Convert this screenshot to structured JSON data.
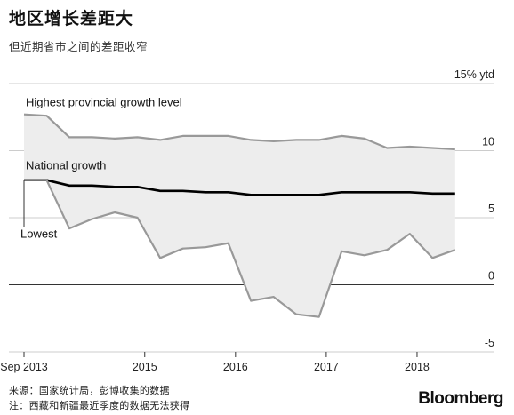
{
  "header": {
    "title": "地区增长差距大",
    "subtitle": "但近期省市之间的差距收窄"
  },
  "footer": {
    "source": "来源：国家统计局，彭博收集的数据",
    "note": "注：西藏和新疆最近季度的数据无法获得",
    "brand": "Bloomberg"
  },
  "chart_data": {
    "type": "line",
    "title": "地区增长差距大",
    "subtitle": "但近期省市之间的差距收窄",
    "ylabel": "15% ytd",
    "ylim": [
      -5,
      15
    ],
    "yticks": [
      15,
      10,
      5,
      0,
      -5
    ],
    "ytick_labels": [
      "15% ytd",
      "10",
      "5",
      "0",
      "-5"
    ],
    "xlim": [
      2013.67,
      2018.5
    ],
    "xticks": [
      2013.67,
      2015,
      2016,
      2017,
      2018
    ],
    "xtick_labels": [
      "Sep 2013",
      "2015",
      "2016",
      "2017",
      "2018"
    ],
    "x": [
      2013.67,
      2013.92,
      2014.17,
      2014.42,
      2014.67,
      2014.92,
      2015.17,
      2015.42,
      2015.67,
      2015.92,
      2016.17,
      2016.42,
      2016.67,
      2016.92,
      2017.17,
      2017.42,
      2017.67,
      2017.92,
      2018.17,
      2018.42
    ],
    "series": [
      {
        "name": "Highest provincial growth level",
        "color": "#999999",
        "values": [
          12.7,
          12.6,
          11.0,
          11.0,
          10.9,
          11.0,
          10.8,
          11.1,
          11.1,
          11.1,
          10.8,
          10.7,
          10.8,
          10.8,
          11.1,
          10.9,
          10.2,
          10.3,
          10.2,
          10.1
        ]
      },
      {
        "name": "National growth",
        "color": "#000000",
        "values": [
          7.8,
          7.8,
          7.4,
          7.4,
          7.3,
          7.3,
          7.0,
          7.0,
          6.9,
          6.9,
          6.7,
          6.7,
          6.7,
          6.7,
          6.9,
          6.9,
          6.9,
          6.9,
          6.8,
          6.8
        ]
      },
      {
        "name": "Lowest",
        "color": "#999999",
        "values": [
          7.8,
          7.8,
          4.2,
          4.9,
          5.4,
          5.0,
          2.0,
          2.7,
          2.8,
          3.1,
          -1.2,
          -0.9,
          -2.2,
          -2.4,
          2.5,
          2.2,
          2.6,
          3.8,
          2.0,
          2.6
        ]
      }
    ],
    "fill_between": "Highest provincial growth level / Lowest",
    "fill_color": "#ededed",
    "grid": "horizontal",
    "legend": "inline labels"
  }
}
